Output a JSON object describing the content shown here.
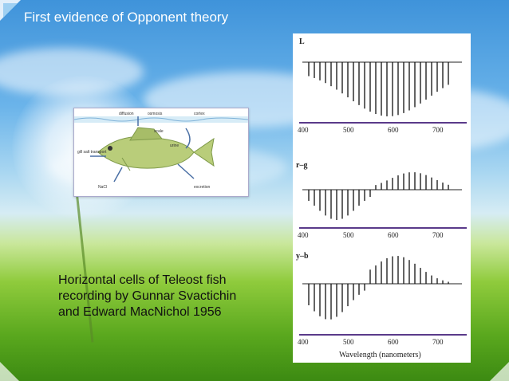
{
  "slide": {
    "title": "First evidence of Opponent theory",
    "caption_lines": [
      "Horizontal cells of Teleost fish",
      "recording by Gunnar Svactichin",
      "and Edward MacNichol 1956"
    ]
  },
  "figure": {
    "panels": [
      {
        "label": "L",
        "ticks": [
          "400",
          "500",
          "600",
          "700"
        ]
      },
      {
        "label": "r–g",
        "ticks": [
          "400",
          "500",
          "600",
          "700"
        ]
      },
      {
        "label": "y–b",
        "ticks": [
          "400",
          "500",
          "600",
          "700"
        ]
      }
    ],
    "xlabel": "Wavelength (nanometers)"
  },
  "fish_diagram": {
    "labels": [
      "diffusion",
      "osmosis",
      "cortex",
      "gill salt transport",
      "scale",
      "urine",
      "NaCl",
      "excretion"
    ]
  },
  "colors": {
    "title_text": "#ffffff",
    "axis_purple": "#5a3a8a",
    "fish_body": "#b9cd7a"
  }
}
